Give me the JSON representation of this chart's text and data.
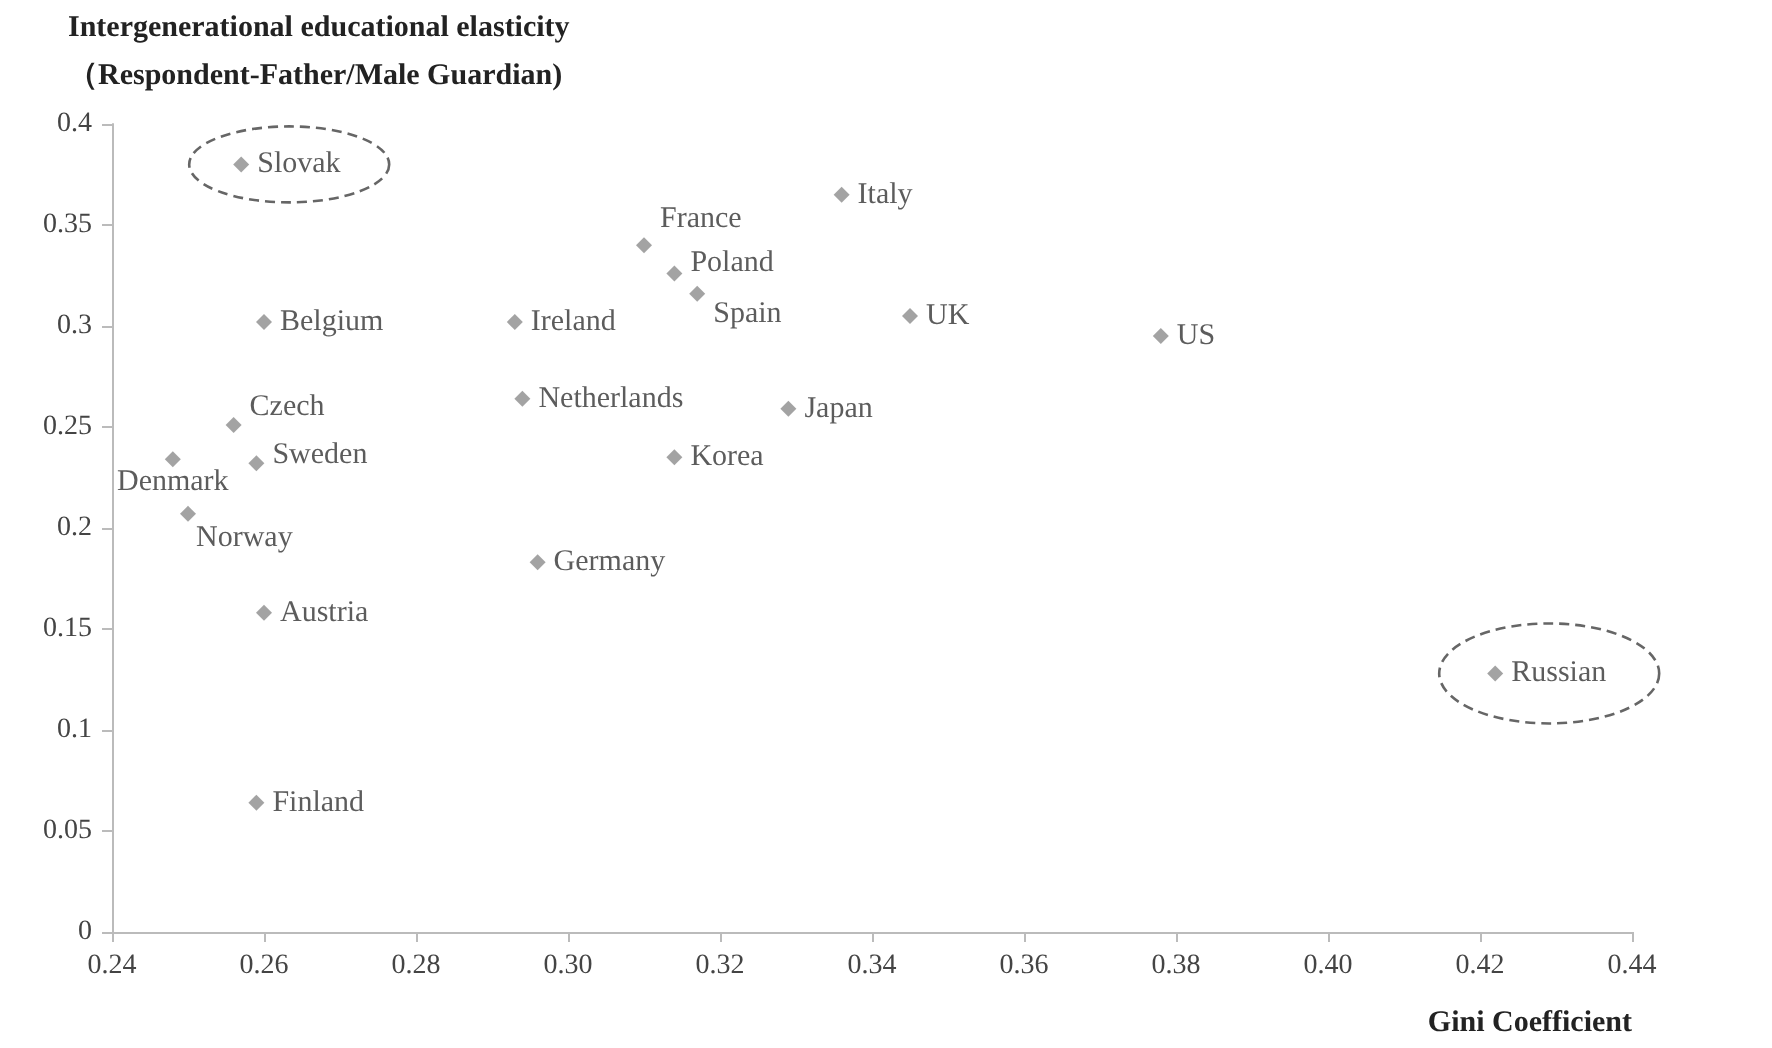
{
  "chart_data": {
    "type": "scatter",
    "xlabel": "Gini Coefficient",
    "ylabel": "Intergenerational educational elasticity\n（Respondent-Father/Male Guardian)",
    "series": [
      {
        "name": "Slovak",
        "color": "#8c8c8c",
        "x": [
          0.257
        ],
        "values": [
          0.38
        ]
      },
      {
        "name": "Belgium",
        "color": "#8c8c8c",
        "x": [
          0.26
        ],
        "values": [
          0.302
        ]
      },
      {
        "name": "Czech",
        "color": "#8c8c8c",
        "x": [
          0.256
        ],
        "values": [
          0.251
        ]
      },
      {
        "name": "Sweden",
        "color": "#8c8c8c",
        "x": [
          0.259
        ],
        "values": [
          0.232
        ]
      },
      {
        "name": "Denmark",
        "color": "#8c8c8c",
        "x": [
          0.248
        ],
        "values": [
          0.234
        ]
      },
      {
        "name": "Norway",
        "color": "#8c8c8c",
        "x": [
          0.25
        ],
        "values": [
          0.207
        ]
      },
      {
        "name": "Austria",
        "color": "#8c8c8c",
        "x": [
          0.26
        ],
        "values": [
          0.158
        ]
      },
      {
        "name": "Finland",
        "color": "#8c8c8c",
        "x": [
          0.259
        ],
        "values": [
          0.064
        ]
      },
      {
        "name": "Ireland",
        "color": "#8c8c8c",
        "x": [
          0.293
        ],
        "values": [
          0.302
        ]
      },
      {
        "name": "Netherlands",
        "color": "#8c8c8c",
        "x": [
          0.294
        ],
        "values": [
          0.264
        ]
      },
      {
        "name": "Germany",
        "color": "#8c8c8c",
        "x": [
          0.296
        ],
        "values": [
          0.183
        ]
      },
      {
        "name": "France",
        "color": "#8c8c8c",
        "x": [
          0.31
        ],
        "values": [
          0.34
        ]
      },
      {
        "name": "Poland",
        "color": "#8c8c8c",
        "x": [
          0.314
        ],
        "values": [
          0.326
        ]
      },
      {
        "name": "Spain",
        "color": "#8c8c8c",
        "x": [
          0.317
        ],
        "values": [
          0.316
        ]
      },
      {
        "name": "Italy",
        "color": "#8c8c8c",
        "x": [
          0.336
        ],
        "values": [
          0.365
        ]
      },
      {
        "name": "Korea",
        "color": "#8c8c8c",
        "x": [
          0.314
        ],
        "values": [
          0.235
        ]
      },
      {
        "name": "Japan",
        "color": "#8c8c8c",
        "x": [
          0.329
        ],
        "values": [
          0.259
        ]
      },
      {
        "name": "UK",
        "color": "#8c8c8c",
        "x": [
          0.345
        ],
        "values": [
          0.305
        ]
      },
      {
        "name": "US",
        "color": "#8c8c8c",
        "x": [
          0.378
        ],
        "values": [
          0.295
        ]
      },
      {
        "name": "Russian",
        "color": "#8c8c8c",
        "x": [
          0.422
        ],
        "values": [
          0.128
        ]
      }
    ],
    "xlim": [
      0.24,
      0.44
    ],
    "xticks": [
      0.24,
      {
        "value": 0.26,
        "label": "0.26"
      },
      {
        "value": 0.28,
        "label": "0.28"
      },
      {
        "value": 0.3,
        "label": "0.30"
      },
      {
        "value": 0.32,
        "label": "0.32"
      },
      {
        "value": 0.34,
        "label": "0.34"
      },
      {
        "value": 0.36,
        "label": "0.36"
      },
      {
        "value": 0.38,
        "label": "0.38"
      },
      {
        "value": 0.4,
        "label": "0.40"
      },
      {
        "value": 0.42,
        "label": "0.42"
      },
      {
        "value": 0.44,
        "label": "0.44"
      }
    ],
    "ylim": [
      0,
      0.4
    ],
    "yticks": [
      0,
      0.05,
      0.1,
      0.15,
      0.2,
      0.25,
      0.3,
      0.35,
      0.4
    ],
    "grid": false,
    "marker": "diamond"
  }
}
